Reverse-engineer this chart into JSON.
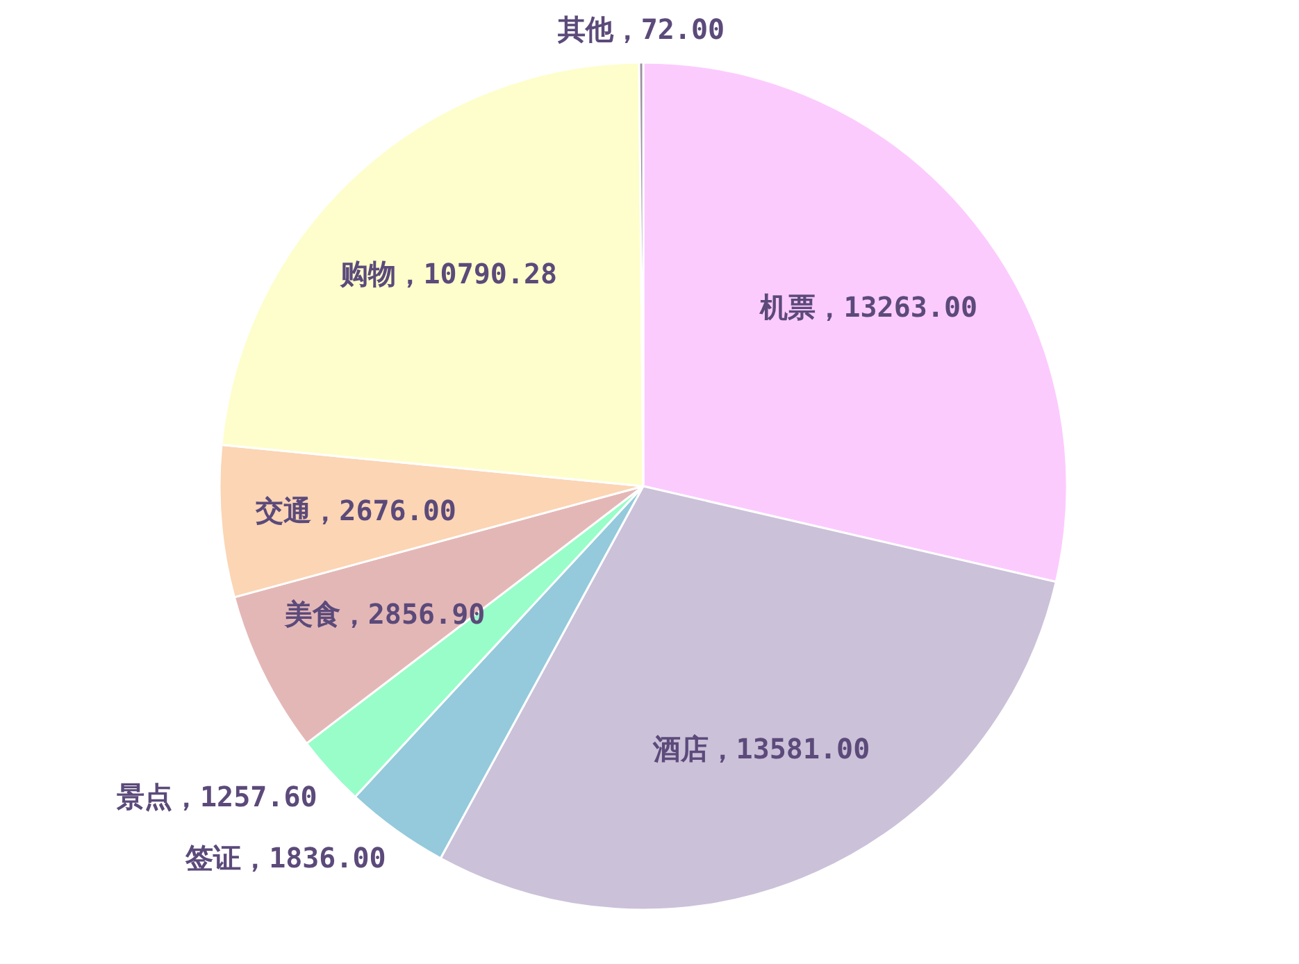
{
  "chart_data": {
    "type": "pie",
    "categories": [
      "机票",
      "酒店",
      "签证",
      "景点",
      "美食",
      "交通",
      "购物",
      "其他"
    ],
    "values": [
      13263,
      13581,
      1836,
      1257.6,
      2856.9,
      2676,
      10790.28,
      72
    ],
    "value_labels": [
      "13263.00",
      "13581.00",
      "1836.00",
      "1257.60",
      "2856.90",
      "2676.00",
      "10790.28",
      "72.00"
    ],
    "colors": [
      "#fccbfe",
      "#cbc1d9",
      "#94cadb",
      "#99fdc9",
      "#e4b7b7",
      "#fbd5b4",
      "#fefecc",
      "#9b8fa0"
    ]
  }
}
